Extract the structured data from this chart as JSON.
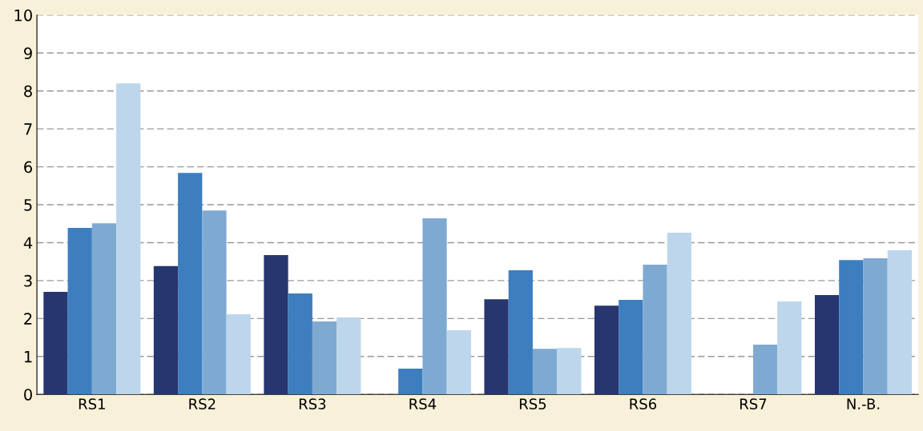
{
  "chart_data": {
    "type": "bar",
    "categories": [
      "RS1",
      "RS2",
      "RS3",
      "RS4",
      "RS5",
      "RS6",
      "RS7",
      "N.-B."
    ],
    "series": [
      {
        "color": "#27366f",
        "values": [
          2.7,
          3.38,
          3.67,
          null,
          2.51,
          2.34,
          null,
          2.62
        ]
      },
      {
        "color": "#3d7ebf",
        "values": [
          4.39,
          5.84,
          2.66,
          0.68,
          3.27,
          2.49,
          null,
          3.54
        ]
      },
      {
        "color": "#7eaad2",
        "values": [
          4.51,
          4.85,
          1.92,
          4.64,
          1.2,
          3.42,
          1.31,
          3.59
        ]
      },
      {
        "color": "#bdd6eb",
        "values": [
          8.2,
          2.11,
          2.03,
          1.69,
          1.22,
          4.26,
          2.45,
          3.8
        ]
      }
    ],
    "ylim": [
      0,
      10
    ],
    "yticks": [
      0,
      1,
      2,
      3,
      4,
      5,
      6,
      7,
      8,
      9,
      10
    ],
    "grid": "y"
  }
}
